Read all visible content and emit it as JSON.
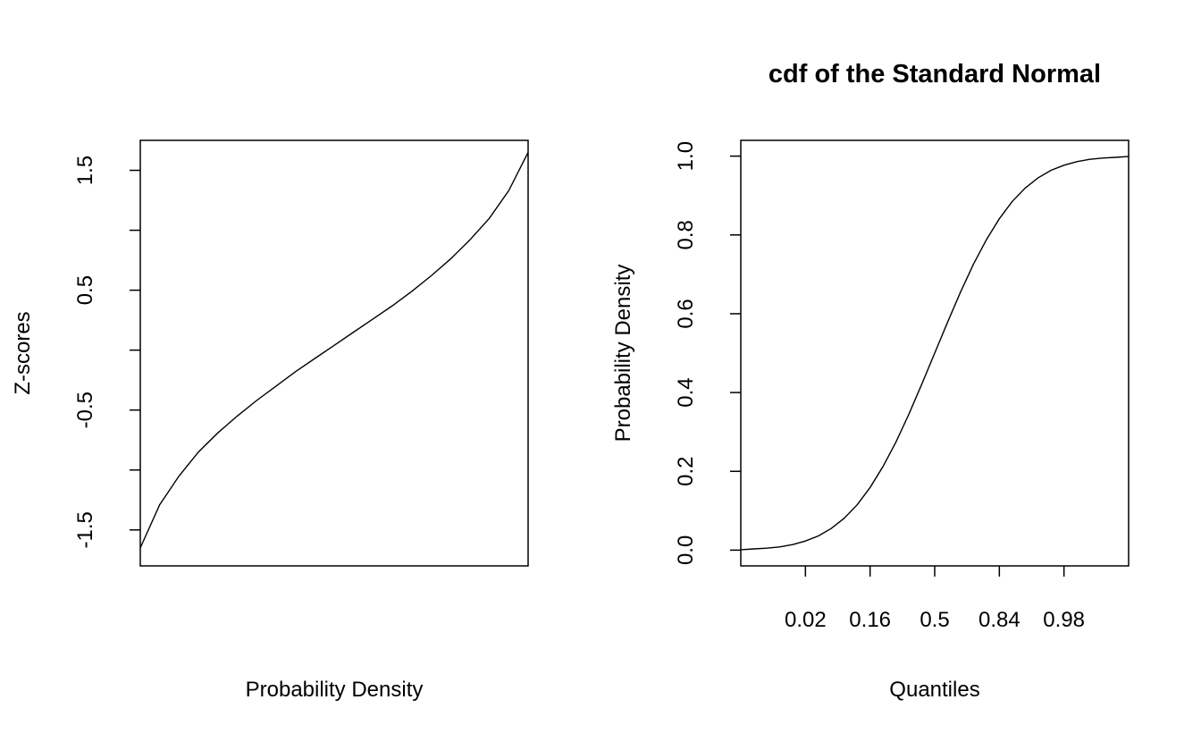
{
  "chart_data": [
    {
      "type": "line",
      "title": "",
      "xlabel": "Probability Density",
      "ylabel": "Z-scores",
      "ylim": [
        -1.8,
        1.75
      ],
      "y_ticks": [
        -1.5,
        -1.0,
        -0.5,
        0.0,
        0.5,
        1.0,
        1.5
      ],
      "y_tick_labels": [
        "-1.5",
        "",
        "-0.5",
        "",
        "0.5",
        "",
        "1.5"
      ],
      "x_ticks": [],
      "grid": false,
      "series": [
        {
          "x": [
            0.0,
            0.05,
            0.1,
            0.15,
            0.2,
            0.25,
            0.3,
            0.35,
            0.4,
            0.45,
            0.5,
            0.55,
            0.6,
            0.65,
            0.7,
            0.75,
            0.8,
            0.85,
            0.9,
            0.95,
            1.0
          ],
          "values": [
            -1.65,
            -1.29,
            -1.05,
            -0.85,
            -0.69,
            -0.55,
            -0.42,
            -0.3,
            -0.18,
            -0.07,
            0.04,
            0.15,
            0.26,
            0.37,
            0.49,
            0.62,
            0.76,
            0.92,
            1.1,
            1.33,
            1.65
          ]
        }
      ]
    },
    {
      "type": "line",
      "title": "cdf of the Standard Normal",
      "xlabel": "Quantiles",
      "ylabel": "Probability Density",
      "xlim": [
        -3.0,
        3.0
      ],
      "ylim": [
        -0.04,
        1.04
      ],
      "x_ticks": [
        -2,
        -1,
        0,
        1,
        2
      ],
      "x_tick_labels": [
        "0.02",
        "0.16",
        "0.5",
        "0.84",
        "0.98"
      ],
      "y_ticks": [
        0.0,
        0.2,
        0.4,
        0.6,
        0.8,
        1.0
      ],
      "y_tick_labels": [
        "0.0",
        "0.2",
        "0.4",
        "0.6",
        "0.8",
        "1.0"
      ],
      "grid": false,
      "series": [
        {
          "x": [
            -3.0,
            -2.8,
            -2.6,
            -2.4,
            -2.2,
            -2.0,
            -1.8,
            -1.6,
            -1.4,
            -1.2,
            -1.0,
            -0.8,
            -0.6,
            -0.4,
            -0.2,
            0.0,
            0.2,
            0.4,
            0.6,
            0.8,
            1.0,
            1.2,
            1.4,
            1.6,
            1.8,
            2.0,
            2.2,
            2.4,
            2.6,
            2.8,
            3.0
          ],
          "values": [
            0.001,
            0.003,
            0.005,
            0.008,
            0.014,
            0.023,
            0.036,
            0.055,
            0.081,
            0.115,
            0.159,
            0.212,
            0.274,
            0.345,
            0.421,
            0.5,
            0.579,
            0.655,
            0.726,
            0.788,
            0.841,
            0.885,
            0.919,
            0.945,
            0.964,
            0.977,
            0.986,
            0.992,
            0.995,
            0.997,
            0.999
          ]
        }
      ]
    }
  ]
}
